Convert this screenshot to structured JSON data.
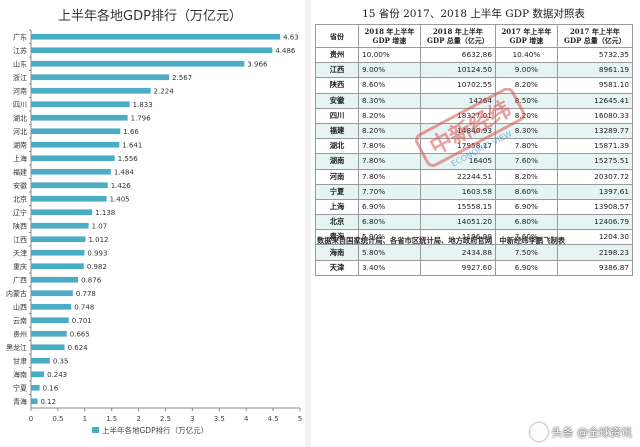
{
  "chart_data": {
    "type": "bar",
    "orientation": "horizontal",
    "title": "上半年各地GDP排行（万亿元）",
    "categories": [
      "广东",
      "江苏",
      "山东",
      "浙江",
      "河南",
      "四川",
      "湖北",
      "河北",
      "湖南",
      "上海",
      "福建",
      "安徽",
      "北京",
      "辽宁",
      "陕西",
      "江西",
      "天津",
      "重庆",
      "广西",
      "内蒙古",
      "山西",
      "云南",
      "贵州",
      "黑龙江",
      "甘肃",
      "海南",
      "宁夏",
      "青海"
    ],
    "series": [
      {
        "name": "上半年各地GDP排行（万亿元）",
        "values": [
          4.63,
          4.486,
          3.966,
          2.567,
          2.224,
          1.833,
          1.796,
          1.66,
          1.641,
          1.556,
          1.484,
          1.426,
          1.405,
          1.138,
          1.07,
          1.012,
          0.993,
          0.982,
          0.876,
          0.778,
          0.748,
          0.701,
          0.665,
          0.624,
          0.35,
          0.243,
          0.16,
          0.12
        ]
      }
    ],
    "xlim": [
      0,
      5
    ],
    "x_ticks": [
      "0",
      "0.5",
      "1",
      "1.5",
      "2",
      "2.5",
      "3",
      "3.5",
      "4",
      "4.5",
      "5"
    ],
    "grid": false,
    "legend": "bottom",
    "bar_color": "#4bacc6"
  },
  "table": {
    "title": "15 省份 2017、2018 上半年 GDP 数据对照表",
    "headers": [
      "省份",
      "2018 年上半年\nGDP 增速",
      "2018 年上半年\nGDP 总量（亿元）",
      "2017 年上半年\nGDP 增速",
      "2017 年上半年\nGDP 总量（亿元）"
    ],
    "rows": [
      [
        "贵州",
        "10.00%",
        "6632.86",
        "10.40%",
        "5732.35"
      ],
      [
        "江西",
        "9.00%",
        "10124.50",
        "9.00%",
        "8961.19"
      ],
      [
        "陕西",
        "8.60%",
        "10702.55",
        "8.20%",
        "9581.10"
      ],
      [
        "安徽",
        "8.30%",
        "14264",
        "8.50%",
        "12645.41"
      ],
      [
        "四川",
        "8.20%",
        "18327.01",
        "8.20%",
        "16080.33"
      ],
      [
        "福建",
        "8.20%",
        "14840.93",
        "8.30%",
        "13289.77"
      ],
      [
        "湖北",
        "7.80%",
        "17958.17",
        "7.80%",
        "15871.39"
      ],
      [
        "湖南",
        "7.80%",
        "16405",
        "7.60%",
        "15275.51"
      ],
      [
        "河南",
        "7.80%",
        "22244.51",
        "8.20%",
        "20307.72"
      ],
      [
        "宁夏",
        "7.70%",
        "1603.58",
        "8.60%",
        "1397.61"
      ],
      [
        "上海",
        "6.90%",
        "15558.15",
        "6.90%",
        "13908.57"
      ],
      [
        "北京",
        "6.80%",
        "14051.20",
        "6.80%",
        "12406.79"
      ],
      [
        "青海",
        "5.90%",
        "1196.99",
        "7.60%",
        "1204.30"
      ],
      [
        "海南",
        "5.80%",
        "2434.88",
        "7.50%",
        "2198.23"
      ],
      [
        "天津",
        "3.40%",
        "9927.60",
        "6.90%",
        "9386.87"
      ]
    ],
    "note": "数据来自国家统计局、各省市区统计局、地方政府官网　中新经纬李鹏飞制表"
  },
  "watermark": {
    "stamp_text": "中新经纬",
    "stamp_sub": "ECONOMIC VIEW"
  },
  "credit": {
    "text": "头条 @全球资讯"
  }
}
